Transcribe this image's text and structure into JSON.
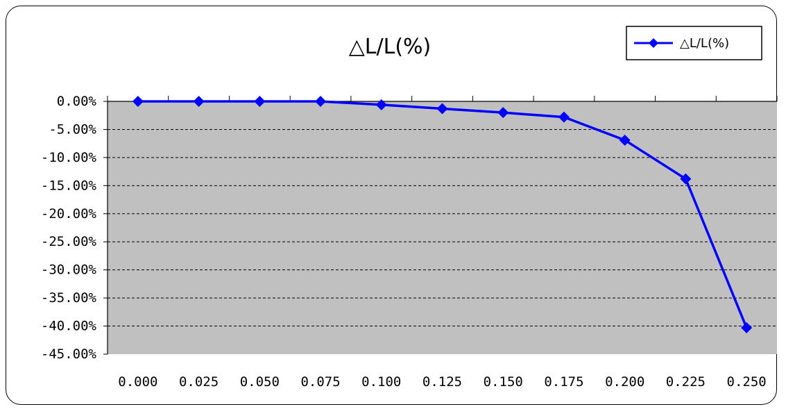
{
  "chart_data": {
    "type": "line",
    "title": "△L/L(%)",
    "x": [
      0.0,
      0.025,
      0.05,
      0.075,
      0.1,
      0.125,
      0.15,
      0.175,
      0.2,
      0.225,
      0.25
    ],
    "x_tick_labels": [
      "0.000",
      "0.025",
      "0.050",
      "0.075",
      "0.100",
      "0.125",
      "0.150",
      "0.175",
      "0.200",
      "0.225",
      "0.250"
    ],
    "ylim": [
      -45,
      0
    ],
    "y_ticks": [
      0,
      -5,
      -10,
      -15,
      -20,
      -25,
      -30,
      -35,
      -40,
      -45
    ],
    "y_tick_labels": [
      "0.00%",
      "-5.00%",
      "-10.00%",
      "-15.00%",
      "-20.00%",
      "-25.00%",
      "-30.00%",
      "-35.00%",
      "-40.00%",
      "-45.00%"
    ],
    "series": [
      {
        "name": "△L/L(%)",
        "color": "#0000ff",
        "marker": "diamond",
        "values": [
          0.0,
          0.0,
          0.0,
          0.0,
          -0.6,
          -1.3,
          -2.0,
          -2.8,
          -6.9,
          -13.8,
          -40.3
        ]
      }
    ],
    "grid": "dashed horizontal",
    "plot_background": "#c0c0c0",
    "legend_position": "top-right"
  }
}
